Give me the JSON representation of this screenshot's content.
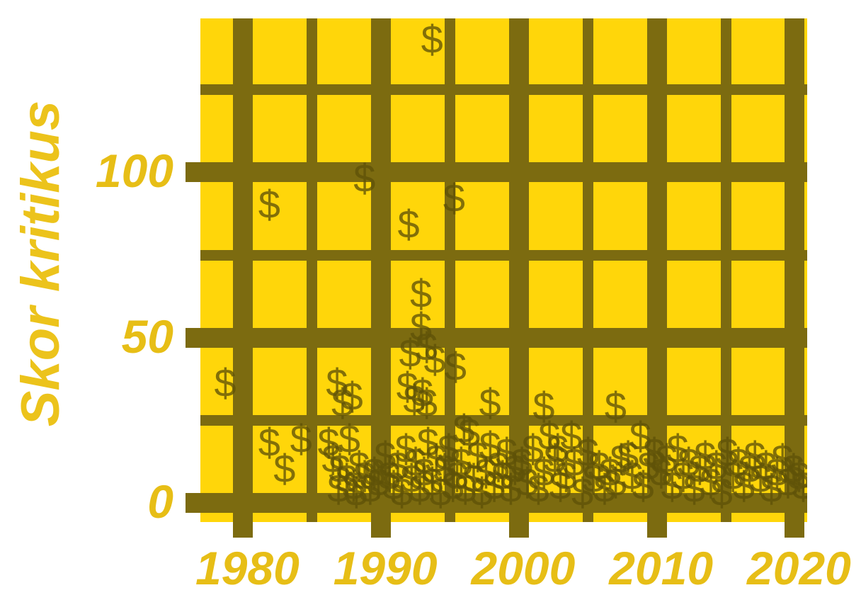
{
  "page": {
    "background": "#FFFFFF"
  },
  "chart_data": {
    "type": "scatter",
    "title": "",
    "xlabel": "",
    "ylabel": "Skor kritikus",
    "marker_glyph": "$",
    "grid": "on",
    "legend_position": "none",
    "x_axis": {
      "range": [
        1976.9,
        2020.9
      ],
      "major_ticks": [
        1980,
        1990,
        2000,
        2010,
        2020
      ],
      "minor_ticks": [
        1985,
        1995,
        2005,
        2015
      ],
      "tick_labels": [
        "1980",
        "1990",
        "2000",
        "2010",
        "2020"
      ]
    },
    "y_axis": {
      "range": [
        -5.8,
        146.6
      ],
      "major_ticks": [
        0,
        50,
        100
      ],
      "minor_ticks": [
        25,
        75,
        125
      ],
      "tick_labels": [
        "0",
        "50",
        "100"
      ]
    },
    "colors": {
      "page_bg": "#FFFFFF",
      "plot_bg": "#FFD60A",
      "grid": "#7C6B10",
      "marker": "rgba(95,82,8,0.78)",
      "tick_text": "#E7BE16",
      "axis_label": "#ECC31B"
    },
    "points": [
      [
        1993.7,
        140
      ],
      [
        1988.8,
        98
      ],
      [
        1995.3,
        92
      ],
      [
        1981.9,
        90
      ],
      [
        1992.0,
        84
      ],
      [
        1992.9,
        63
      ],
      [
        1992.9,
        53
      ],
      [
        1993.3,
        47
      ],
      [
        1992.1,
        45
      ],
      [
        1993.9,
        43
      ],
      [
        1995.4,
        41
      ],
      [
        1978.7,
        36
      ],
      [
        1986.8,
        36
      ],
      [
        1991.9,
        35
      ],
      [
        1993.0,
        33
      ],
      [
        1987.9,
        32
      ],
      [
        1992.4,
        31
      ],
      [
        1987.2,
        30
      ],
      [
        1993.3,
        30
      ],
      [
        1997.9,
        30
      ],
      [
        2001.8,
        29
      ],
      [
        2007.0,
        29
      ],
      [
        1981.9,
        18
      ],
      [
        1983.0,
        10
      ],
      [
        1984.2,
        19
      ],
      [
        1986.2,
        18
      ],
      [
        1987.7,
        19
      ],
      [
        1986.5,
        13
      ],
      [
        1987.0,
        10
      ],
      [
        1987.5,
        7
      ],
      [
        1988.0,
        5
      ],
      [
        1988.4,
        11
      ],
      [
        1988.8,
        8
      ],
      [
        1989.2,
        4
      ],
      [
        1989.5,
        9
      ],
      [
        1989.8,
        6
      ],
      [
        1986.9,
        4
      ],
      [
        1988.2,
        3
      ],
      [
        1990.3,
        14
      ],
      [
        1990.6,
        8
      ],
      [
        1990.9,
        5
      ],
      [
        1991.2,
        11
      ],
      [
        1991.5,
        3
      ],
      [
        1991.8,
        16
      ],
      [
        1992.2,
        7
      ],
      [
        1992.5,
        12
      ],
      [
        1992.8,
        4
      ],
      [
        1993.1,
        9
      ],
      [
        1993.4,
        18
      ],
      [
        1993.7,
        6
      ],
      [
        1994.0,
        13
      ],
      [
        1994.3,
        3
      ],
      [
        1994.6,
        10
      ],
      [
        1994.9,
        16
      ],
      [
        1995.2,
        5
      ],
      [
        1995.5,
        8
      ],
      [
        1995.8,
        12
      ],
      [
        1996.1,
        4
      ],
      [
        1996.0,
        22
      ],
      [
        1996.4,
        21
      ],
      [
        1996.7,
        7
      ],
      [
        1997.0,
        14
      ],
      [
        1997.3,
        3
      ],
      [
        1997.6,
        9
      ],
      [
        1997.9,
        17
      ],
      [
        1998.2,
        5
      ],
      [
        1998.5,
        11
      ],
      [
        1998.8,
        8
      ],
      [
        1999.1,
        15
      ],
      [
        1999.4,
        4
      ],
      [
        1999.7,
        10
      ],
      [
        2000.2,
        12
      ],
      [
        2000.6,
        6
      ],
      [
        2001.0,
        16
      ],
      [
        2001.4,
        4
      ],
      [
        2001.8,
        9
      ],
      [
        2002.2,
        20
      ],
      [
        2002.6,
        13
      ],
      [
        2002.8,
        16
      ],
      [
        2003.0,
        5
      ],
      [
        2003.4,
        8
      ],
      [
        2003.8,
        20
      ],
      [
        2004.0,
        12
      ],
      [
        2004.6,
        3
      ],
      [
        2005.0,
        15
      ],
      [
        2005.4,
        7
      ],
      [
        2005.8,
        11
      ],
      [
        2006.2,
        4
      ],
      [
        2006.6,
        9
      ],
      [
        2007.0,
        6
      ],
      [
        2007.4,
        13
      ],
      [
        2007.9,
        14
      ],
      [
        2008.2,
        8
      ],
      [
        2008.8,
        20
      ],
      [
        2009.0,
        5
      ],
      [
        2009.4,
        11
      ],
      [
        2009.8,
        15
      ],
      [
        2010.3,
        9
      ],
      [
        2010.7,
        13
      ],
      [
        2011.1,
        5
      ],
      [
        2011.5,
        16
      ],
      [
        2011.9,
        8
      ],
      [
        2012.3,
        12
      ],
      [
        2012.7,
        4
      ],
      [
        2013.1,
        10
      ],
      [
        2013.5,
        14
      ],
      [
        2013.9,
        6
      ],
      [
        2014.3,
        11
      ],
      [
        2014.7,
        3
      ],
      [
        2015.1,
        15
      ],
      [
        2015.5,
        8
      ],
      [
        2015.9,
        12
      ],
      [
        2016.3,
        5
      ],
      [
        2016.7,
        10
      ],
      [
        2017.1,
        14
      ],
      [
        2017.5,
        7
      ],
      [
        2017.9,
        11
      ],
      [
        2018.3,
        4
      ],
      [
        2018.7,
        9
      ],
      [
        2019.1,
        13
      ],
      [
        2019.5,
        6
      ],
      [
        2019.9,
        10
      ],
      [
        2020.3,
        8
      ],
      [
        2020.6,
        5
      ]
    ]
  }
}
